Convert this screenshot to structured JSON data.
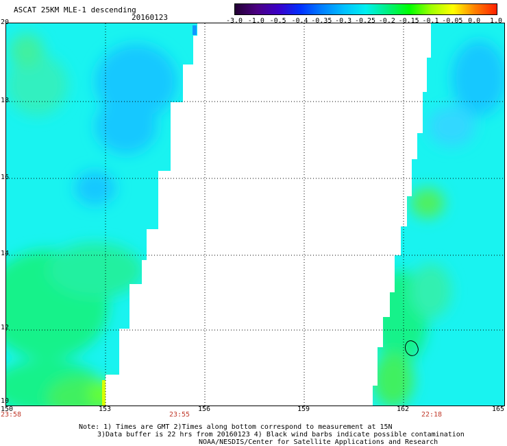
{
  "title": "ASCAT 25KM MLE-1 descending",
  "date": "20160123",
  "colorbar": {
    "labels": [
      "-3.0",
      "-1.0",
      "-0.5",
      "-0.4",
      "-0.35",
      "-0.3",
      "-0.25",
      "-0.2",
      "-0.15",
      "-0.1",
      "-0.05",
      "0.0",
      "1.0"
    ],
    "colors": [
      "#220033",
      "#4b0082",
      "#3a00c8",
      "#0030ff",
      "#0080ff",
      "#00c0ff",
      "#00f0f0",
      "#00f080",
      "#00ff00",
      "#a0ff00",
      "#ffff00",
      "#ff8000",
      "#ff2000"
    ]
  },
  "map": {
    "lat_labels": [
      "20",
      "18",
      "16",
      "14",
      "12",
      "10"
    ],
    "lon_labels": [
      "150",
      "153",
      "156",
      "159",
      "162",
      "165"
    ],
    "time_labels": [
      "23:58",
      "23:55",
      "22:18"
    ],
    "swath_colors": {
      "cyan": "#19f3f0",
      "blue": "#18c8ff",
      "green": "#14f28a",
      "bright_green": "#66ff33",
      "yellow": "#d8ff00",
      "deep_blue": "#1098ff"
    }
  },
  "notes": [
    "Note: 1) Times are GMT 2)Times along bottom correspond to measurement at 15N",
    "3)Data buffer is 22 hrs from 20160123 4) Black wind barbs indicate possible contamination",
    "NOAA/NESDIS/Center for Satellite Applications and Research"
  ]
}
